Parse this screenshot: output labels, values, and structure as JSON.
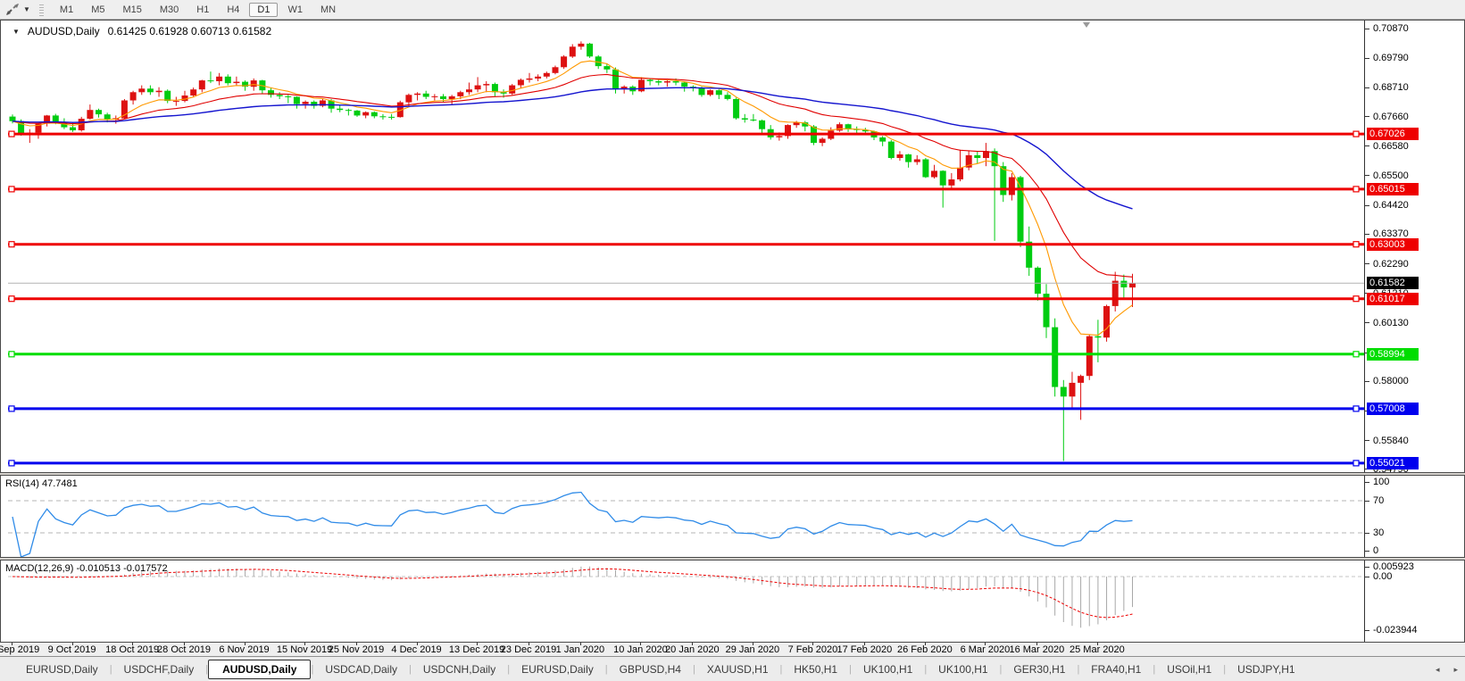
{
  "toolbar": {
    "timeframes": [
      "M1",
      "M5",
      "M15",
      "M30",
      "H1",
      "H4",
      "D1",
      "W1",
      "MN"
    ],
    "active_timeframe": "D1"
  },
  "chart": {
    "title": "AUDUSD,Daily",
    "ohlc": "0.61425 0.61928 0.60713 0.61582",
    "collapse_triangle": "▼",
    "price_axis": {
      "ticks": [
        "0.70870",
        "0.69790",
        "0.68710",
        "0.67660",
        "0.66580",
        "0.65500",
        "0.64420",
        "0.63370",
        "0.62290",
        "0.61210",
        "0.60130",
        "0.59050",
        "0.58000",
        "0.56920",
        "0.55840",
        "0.54790"
      ]
    },
    "hlines": [
      {
        "price": 0.67026,
        "label": "0.67026",
        "color": "#ee0000"
      },
      {
        "price": 0.65015,
        "label": "0.65015",
        "color": "#ee0000"
      },
      {
        "price": 0.63003,
        "label": "0.63003",
        "color": "#ee0000"
      },
      {
        "price": 0.61017,
        "label": "0.61017",
        "color": "#ee0000"
      },
      {
        "price": 0.58994,
        "label": "0.58994",
        "color": "#00dd00"
      },
      {
        "price": 0.57008,
        "label": "0.57008",
        "color": "#0000ee"
      },
      {
        "price": 0.55021,
        "label": "0.55021",
        "color": "#0000ee"
      }
    ],
    "current_price": {
      "value": 0.61582,
      "label": "0.61582",
      "line_color": "#b4b4b4",
      "badge_color": "#000000"
    }
  },
  "chart_data": {
    "type": "candlestick",
    "symbol": "AUDUSD",
    "timeframe": "Daily",
    "up_color": "#dd1111",
    "down_color": "#00cc11",
    "moving_averages": [
      {
        "period": 8,
        "color": "#ff9900"
      },
      {
        "period": 21,
        "color": "#e00000"
      },
      {
        "period": 55,
        "color": "#1515cf"
      }
    ],
    "candles": [
      [
        0.6766,
        0.6774,
        0.6741,
        0.6749
      ],
      [
        0.6749,
        0.6756,
        0.6696,
        0.6705
      ],
      [
        0.6705,
        0.672,
        0.667,
        0.6707
      ],
      [
        0.6707,
        0.6742,
        0.6685,
        0.674
      ],
      [
        0.674,
        0.6772,
        0.673,
        0.677
      ],
      [
        0.677,
        0.6776,
        0.6738,
        0.6742
      ],
      [
        0.6742,
        0.676,
        0.672,
        0.6727
      ],
      [
        0.6727,
        0.6745,
        0.671,
        0.6716
      ],
      [
        0.6716,
        0.6765,
        0.6711,
        0.6758
      ],
      [
        0.6758,
        0.681,
        0.6755,
        0.679
      ],
      [
        0.679,
        0.6795,
        0.6762,
        0.6774
      ],
      [
        0.6774,
        0.678,
        0.6745,
        0.6755
      ],
      [
        0.6755,
        0.677,
        0.674,
        0.676
      ],
      [
        0.676,
        0.683,
        0.6757,
        0.6825
      ],
      [
        0.6825,
        0.686,
        0.681,
        0.6855
      ],
      [
        0.6855,
        0.688,
        0.6845,
        0.6868
      ],
      [
        0.6868,
        0.688,
        0.6845,
        0.6855
      ],
      [
        0.6855,
        0.6873,
        0.6838,
        0.686
      ],
      [
        0.686,
        0.6865,
        0.6815,
        0.6823
      ],
      [
        0.6823,
        0.6838,
        0.6805,
        0.6823
      ],
      [
        0.6823,
        0.686,
        0.6818,
        0.6843
      ],
      [
        0.6843,
        0.6872,
        0.6837,
        0.6865
      ],
      [
        0.6865,
        0.69,
        0.6855,
        0.6898
      ],
      [
        0.6898,
        0.693,
        0.6888,
        0.6895
      ],
      [
        0.6895,
        0.6925,
        0.688,
        0.6912
      ],
      [
        0.6912,
        0.692,
        0.688,
        0.6888
      ],
      [
        0.6888,
        0.6912,
        0.6877,
        0.6893
      ],
      [
        0.6893,
        0.6898,
        0.686,
        0.6875
      ],
      [
        0.6875,
        0.6905,
        0.686,
        0.6898
      ],
      [
        0.6898,
        0.69,
        0.685,
        0.6862
      ],
      [
        0.6862,
        0.687,
        0.6835,
        0.6845
      ],
      [
        0.6845,
        0.6855,
        0.683,
        0.684
      ],
      [
        0.684,
        0.6845,
        0.6815,
        0.6838
      ],
      [
        0.6838,
        0.684,
        0.6795,
        0.6812
      ],
      [
        0.6812,
        0.6825,
        0.6795,
        0.682
      ],
      [
        0.682,
        0.6825,
        0.6795,
        0.6805
      ],
      [
        0.6805,
        0.683,
        0.68,
        0.6825
      ],
      [
        0.6825,
        0.683,
        0.678,
        0.6795
      ],
      [
        0.6795,
        0.681,
        0.6782,
        0.679
      ],
      [
        0.679,
        0.6795,
        0.677,
        0.6788
      ],
      [
        0.6788,
        0.679,
        0.6765,
        0.677
      ],
      [
        0.677,
        0.6785,
        0.676,
        0.6782
      ],
      [
        0.6782,
        0.6785,
        0.676,
        0.6767
      ],
      [
        0.6767,
        0.6775,
        0.6755,
        0.6765
      ],
      [
        0.6765,
        0.6775,
        0.6755,
        0.6764
      ],
      [
        0.6764,
        0.6824,
        0.6762,
        0.6818
      ],
      [
        0.6818,
        0.685,
        0.6805,
        0.6845
      ],
      [
        0.6845,
        0.6855,
        0.6825,
        0.685
      ],
      [
        0.685,
        0.686,
        0.683,
        0.6838
      ],
      [
        0.6838,
        0.6848,
        0.6825,
        0.684
      ],
      [
        0.684,
        0.6848,
        0.682,
        0.683
      ],
      [
        0.683,
        0.6845,
        0.681,
        0.684
      ],
      [
        0.684,
        0.686,
        0.683,
        0.6855
      ],
      [
        0.6855,
        0.689,
        0.6845,
        0.6865
      ],
      [
        0.6865,
        0.691,
        0.6855,
        0.688
      ],
      [
        0.688,
        0.6895,
        0.6855,
        0.6885
      ],
      [
        0.6885,
        0.689,
        0.684,
        0.6855
      ],
      [
        0.6855,
        0.6865,
        0.6835,
        0.685
      ],
      [
        0.685,
        0.6885,
        0.6845,
        0.688
      ],
      [
        0.688,
        0.6905,
        0.687,
        0.69
      ],
      [
        0.69,
        0.6925,
        0.689,
        0.6905
      ],
      [
        0.6905,
        0.692,
        0.6895,
        0.6912
      ],
      [
        0.6912,
        0.693,
        0.6905,
        0.6925
      ],
      [
        0.6925,
        0.6952,
        0.692,
        0.6946
      ],
      [
        0.6946,
        0.699,
        0.694,
        0.6985
      ],
      [
        0.6985,
        0.703,
        0.698,
        0.7021
      ],
      [
        0.7021,
        0.704,
        0.701,
        0.7032
      ],
      [
        0.7032,
        0.7035,
        0.698,
        0.6985
      ],
      [
        0.6985,
        0.699,
        0.694,
        0.695
      ],
      [
        0.695,
        0.696,
        0.6925,
        0.6938
      ],
      [
        0.6938,
        0.6945,
        0.685,
        0.6865
      ],
      [
        0.6865,
        0.688,
        0.685,
        0.6875
      ],
      [
        0.6875,
        0.688,
        0.6845,
        0.6858
      ],
      [
        0.6858,
        0.691,
        0.6855,
        0.69
      ],
      [
        0.69,
        0.6905,
        0.688,
        0.6895
      ],
      [
        0.6895,
        0.69,
        0.688,
        0.689
      ],
      [
        0.689,
        0.69,
        0.6875,
        0.6895
      ],
      [
        0.6895,
        0.6905,
        0.688,
        0.689
      ],
      [
        0.689,
        0.6895,
        0.6857,
        0.6875
      ],
      [
        0.6875,
        0.688,
        0.6858,
        0.687
      ],
      [
        0.687,
        0.6875,
        0.6838,
        0.6845
      ],
      [
        0.6845,
        0.6865,
        0.684,
        0.6862
      ],
      [
        0.6862,
        0.6865,
        0.683,
        0.6845
      ],
      [
        0.6845,
        0.6855,
        0.6825,
        0.683
      ],
      [
        0.683,
        0.6835,
        0.6755,
        0.676
      ],
      [
        0.676,
        0.6775,
        0.6744,
        0.6755
      ],
      [
        0.6755,
        0.6775,
        0.6748,
        0.6752
      ],
      [
        0.6752,
        0.6755,
        0.67,
        0.672
      ],
      [
        0.672,
        0.6735,
        0.6682,
        0.669
      ],
      [
        0.669,
        0.6708,
        0.6678,
        0.6695
      ],
      [
        0.6695,
        0.6738,
        0.6685,
        0.6735
      ],
      [
        0.6735,
        0.675,
        0.6725,
        0.6745
      ],
      [
        0.6745,
        0.675,
        0.6712,
        0.673
      ],
      [
        0.673,
        0.6735,
        0.6662,
        0.667
      ],
      [
        0.667,
        0.669,
        0.6658,
        0.6685
      ],
      [
        0.6685,
        0.6727,
        0.668,
        0.6715
      ],
      [
        0.6715,
        0.6745,
        0.671,
        0.6738
      ],
      [
        0.6738,
        0.674,
        0.671,
        0.672
      ],
      [
        0.672,
        0.673,
        0.6705,
        0.6717
      ],
      [
        0.6717,
        0.6725,
        0.67,
        0.6712
      ],
      [
        0.6712,
        0.6715,
        0.668,
        0.669
      ],
      [
        0.669,
        0.6695,
        0.6658,
        0.6675
      ],
      [
        0.6675,
        0.668,
        0.661,
        0.6615
      ],
      [
        0.6615,
        0.664,
        0.6605,
        0.6628
      ],
      [
        0.6628,
        0.663,
        0.658,
        0.66
      ],
      [
        0.66,
        0.6625,
        0.659,
        0.661
      ],
      [
        0.661,
        0.6615,
        0.6542,
        0.6545
      ],
      [
        0.6545,
        0.659,
        0.654,
        0.6568
      ],
      [
        0.6568,
        0.657,
        0.6434,
        0.6515
      ],
      [
        0.6515,
        0.656,
        0.6505,
        0.6537
      ],
      [
        0.6537,
        0.6645,
        0.653,
        0.658
      ],
      [
        0.658,
        0.664,
        0.657,
        0.6625
      ],
      [
        0.6625,
        0.664,
        0.6595,
        0.6615
      ],
      [
        0.6615,
        0.667,
        0.6585,
        0.664
      ],
      [
        0.664,
        0.665,
        0.6313,
        0.6585
      ],
      [
        0.6585,
        0.66,
        0.6455,
        0.648
      ],
      [
        0.648,
        0.656,
        0.646,
        0.6545
      ],
      [
        0.6545,
        0.655,
        0.629,
        0.631
      ],
      [
        0.631,
        0.6365,
        0.6185,
        0.6215
      ],
      [
        0.6215,
        0.622,
        0.6095,
        0.612
      ],
      [
        0.612,
        0.6155,
        0.5958,
        0.5998
      ],
      [
        0.5998,
        0.603,
        0.5745,
        0.578
      ],
      [
        0.578,
        0.5805,
        0.551,
        0.5745
      ],
      [
        0.5745,
        0.5835,
        0.57,
        0.5795
      ],
      [
        0.5795,
        0.5825,
        0.566,
        0.582
      ],
      [
        0.582,
        0.597,
        0.5805,
        0.5965
      ],
      [
        0.5965,
        0.6025,
        0.587,
        0.596
      ],
      [
        0.596,
        0.608,
        0.5945,
        0.6075
      ],
      [
        0.6075,
        0.62,
        0.6055,
        0.6167
      ],
      [
        0.6167,
        0.619,
        0.61,
        0.6143
      ],
      [
        0.61425,
        0.61928,
        0.60713,
        0.61582
      ]
    ]
  },
  "rsi": {
    "label": "RSI(14) 47.7481",
    "period": 14,
    "value": 47.7481,
    "line_color": "#2f8be8",
    "level_dash_color": "#b5b5b5",
    "levels_dashed": [
      70,
      30
    ],
    "axis_ticks": [
      {
        "text": "100",
        "value": 100
      },
      {
        "text": "70",
        "value": 70
      },
      {
        "text": "30",
        "value": 30
      },
      {
        "text": "0",
        "value": 0
      }
    ]
  },
  "macd": {
    "label": "MACD(12,26,9) -0.010513 -0.017572",
    "fast": 12,
    "slow": 26,
    "signal_period": 9,
    "main_value": -0.010513,
    "signal_value": -0.017572,
    "histogram_color": "#a8a8a8",
    "signal_color": "#ee0000",
    "axis_ticks": [
      {
        "text": "0.005923",
        "value": 0.005923
      },
      {
        "text": "0.00",
        "value": 0
      },
      {
        "text": "-0.023944",
        "value": -0.023944
      }
    ]
  },
  "time_axis": {
    "labels": [
      {
        "text": "30 Sep 2019",
        "i": 0
      },
      {
        "text": "9 Oct 2019",
        "i": 7
      },
      {
        "text": "18 Oct 2019",
        "i": 14
      },
      {
        "text": "28 Oct 2019",
        "i": 20
      },
      {
        "text": "6 Nov 2019",
        "i": 27
      },
      {
        "text": "15 Nov 2019",
        "i": 34
      },
      {
        "text": "25 Nov 2019",
        "i": 40
      },
      {
        "text": "4 Dec 2019",
        "i": 47
      },
      {
        "text": "13 Dec 2019",
        "i": 54
      },
      {
        "text": "23 Dec 2019",
        "i": 60
      },
      {
        "text": "1 Jan 2020",
        "i": 66
      },
      {
        "text": "10 Jan 2020",
        "i": 73
      },
      {
        "text": "20 Jan 2020",
        "i": 79
      },
      {
        "text": "29 Jan 2020",
        "i": 86
      },
      {
        "text": "7 Feb 2020",
        "i": 93
      },
      {
        "text": "17 Feb 2020",
        "i": 99
      },
      {
        "text": "26 Feb 2020",
        "i": 106
      },
      {
        "text": "6 Mar 2020",
        "i": 113
      },
      {
        "text": "16 Mar 2020",
        "i": 119
      },
      {
        "text": "25 Mar 2020",
        "i": 126
      }
    ]
  },
  "tabs": {
    "active_index": 2,
    "scroll_left": "◂",
    "scroll_right": "▸",
    "items": [
      "EURUSD,Daily",
      "USDCHF,Daily",
      "AUDUSD,Daily",
      "USDCAD,Daily",
      "USDCNH,Daily",
      "EURUSD,Daily",
      "GBPUSD,H4",
      "XAUUSD,H1",
      "HK50,H1",
      "UK100,H1",
      "UK100,H1",
      "GER30,H1",
      "FRA40,H1",
      "USOil,H1",
      "USDJPY,H1"
    ]
  }
}
